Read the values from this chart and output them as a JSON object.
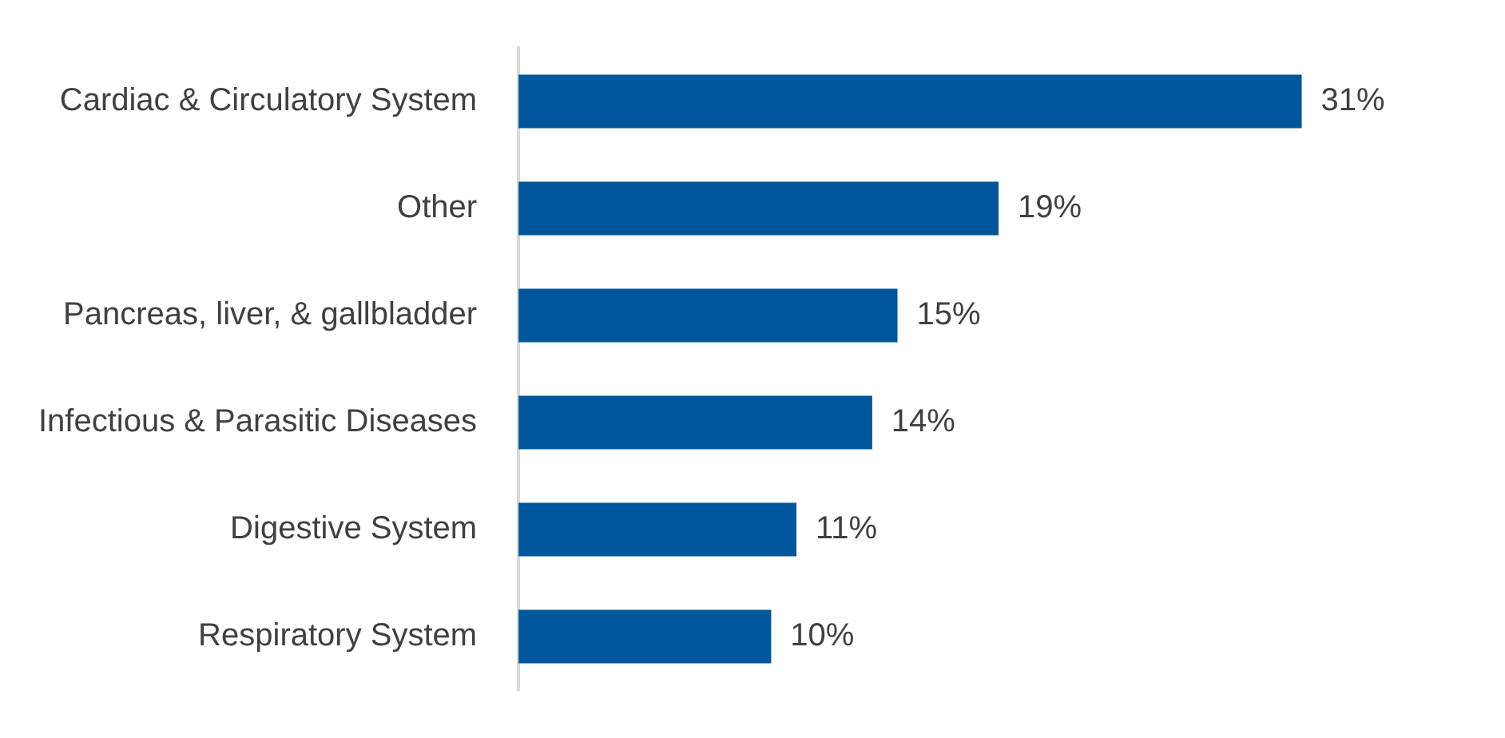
{
  "chart_data": {
    "type": "bar",
    "orientation": "horizontal",
    "categories": [
      "Cardiac & Circulatory System",
      "Other",
      "Pancreas, liver, & gallbladder",
      "Infectious & Parasitic Diseases",
      "Digestive System",
      "Respiratory System"
    ],
    "values": [
      31,
      19,
      15,
      14,
      11,
      10
    ],
    "value_labels": [
      "31%",
      "19%",
      "15%",
      "14%",
      "11%",
      "10%"
    ],
    "color": "#00569a",
    "legend": false,
    "tick_labels": "y"
  }
}
